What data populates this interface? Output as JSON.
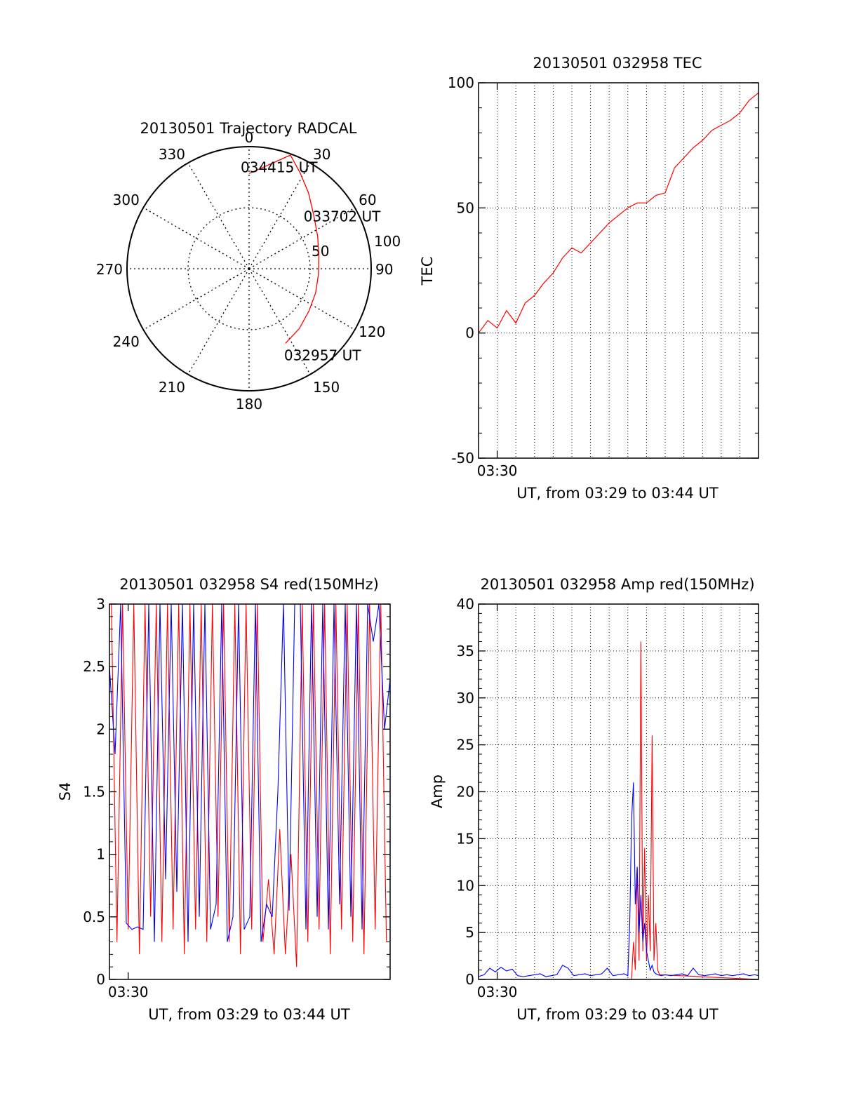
{
  "colors": {
    "primary": "#ff0000",
    "secondary": "#0000ff",
    "axis": "#000000",
    "grid": "#000000"
  },
  "chart_data": [
    {
      "type": "polar",
      "title": "20130501 Trajectory RADCAL",
      "angle_labels": [
        "0",
        "30",
        "60",
        "90",
        "120",
        "150",
        "180",
        "210",
        "240",
        "270",
        "300",
        "330"
      ],
      "radial_labels": [
        "50",
        "100"
      ],
      "rlim": [
        0,
        100
      ],
      "grid": true,
      "trajectory": {
        "start_label": "032957 UT",
        "mid_label": "033702 UT",
        "end_label": "034415 UT",
        "points": [
          {
            "az": 154,
            "r": 68
          },
          {
            "az": 140,
            "r": 64
          },
          {
            "az": 125,
            "r": 60
          },
          {
            "az": 110,
            "r": 58
          },
          {
            "az": 95,
            "r": 57
          },
          {
            "az": 80,
            "r": 58
          },
          {
            "az": 65,
            "r": 62
          },
          {
            "az": 50,
            "r": 69
          },
          {
            "az": 38,
            "r": 79
          },
          {
            "az": 28,
            "r": 89
          },
          {
            "az": 20,
            "r": 99
          },
          {
            "az": 0,
            "r": 78
          }
        ]
      }
    },
    {
      "type": "line",
      "title": "20130501 032958 TEC",
      "xlabel": "UT, from 03:29 to 03:44 UT",
      "ylabel": "TEC",
      "x_ticks": [
        "03:30"
      ],
      "y_ticks": [
        "-50",
        "0",
        "50",
        "100"
      ],
      "xlim": [
        0,
        15
      ],
      "ylim": [
        -50,
        100
      ],
      "grid": true,
      "series": [
        {
          "x": [
            0,
            0.5,
            1,
            1.5,
            2,
            2.5,
            3,
            3.5,
            4,
            4.5,
            5,
            5.5,
            6,
            6.5,
            7,
            7.5,
            8,
            8.5,
            9,
            9.5,
            10,
            10.5,
            11,
            11.5,
            12,
            12.5,
            13,
            13.5,
            14,
            14.5,
            15
          ],
          "y": [
            0,
            5,
            2,
            9,
            4,
            12,
            15,
            20,
            24,
            30,
            34,
            32,
            36,
            40,
            44,
            47,
            50,
            52,
            52,
            55,
            56,
            66,
            70,
            74,
            77,
            81,
            83,
            85,
            88,
            93,
            96
          ]
        }
      ]
    },
    {
      "type": "line",
      "title": "20130501 032958 S4 red(150MHz)",
      "xlabel": "UT, from 03:29 to 03:44 UT",
      "ylabel": "S4",
      "x_ticks": [
        "03:30"
      ],
      "y_ticks": [
        "0",
        "0.5",
        "1",
        "1.5",
        "2",
        "2.5",
        "3"
      ],
      "xlim": [
        0,
        15
      ],
      "ylim": [
        0,
        3
      ],
      "grid": false,
      "series": [
        {
          "color": "#ff0000",
          "x": [
            0.1,
            0.4,
            0.7,
            1.0,
            1.3,
            1.6,
            1.9,
            2.2,
            2.5,
            2.8,
            3.1,
            3.4,
            3.7,
            4.0,
            4.3,
            4.6,
            4.9,
            5.2,
            5.5,
            5.8,
            6.1,
            6.4,
            6.7,
            7.0,
            7.3,
            7.6,
            7.9,
            8.2,
            8.5,
            8.8,
            9.1,
            9.4,
            9.7,
            10.0,
            10.3,
            10.6,
            10.9,
            11.2,
            11.5,
            11.8,
            12.1,
            12.4,
            12.7,
            13.0,
            13.3,
            13.6,
            13.9,
            14.2,
            14.5,
            14.8
          ],
          "y": [
            3,
            0.3,
            3,
            0.4,
            3,
            0.2,
            3,
            0.5,
            3,
            0.3,
            3,
            0.4,
            3,
            0.2,
            3,
            0.4,
            3,
            0.3,
            3,
            0.5,
            3,
            0.3,
            3,
            0.2,
            3,
            0.4,
            3,
            0.3,
            0.8,
            0.2,
            1.2,
            0.2,
            1.0,
            0.1,
            3,
            0.3,
            3,
            0.4,
            3,
            0.2,
            3,
            0.4,
            3,
            0.3,
            3,
            0.2,
            3,
            0.4,
            3,
            0.3
          ]
        },
        {
          "color": "#0000ff",
          "x": [
            0.0,
            0.3,
            0.6,
            0.9,
            1.2,
            1.5,
            1.8,
            2.1,
            2.4,
            2.7,
            3.0,
            3.3,
            3.6,
            3.9,
            4.2,
            4.5,
            4.8,
            5.1,
            5.4,
            5.7,
            6.0,
            6.3,
            6.6,
            6.9,
            7.2,
            7.5,
            7.8,
            8.1,
            8.4,
            8.7,
            9.0,
            9.3,
            9.6,
            9.9,
            10.2,
            10.5,
            10.8,
            11.1,
            11.4,
            11.7,
            12.0,
            12.3,
            12.6,
            12.9,
            13.2,
            13.5,
            13.8,
            14.1,
            14.4,
            14.7,
            15.0
          ],
          "y": [
            2.5,
            1.8,
            3,
            0.45,
            0.4,
            0.42,
            0.4,
            3,
            0.3,
            3,
            0.8,
            3,
            0.7,
            3,
            0.3,
            3,
            0.5,
            3,
            0.4,
            0.6,
            3,
            0.3,
            0.5,
            3,
            0.4,
            0.5,
            3,
            0.3,
            0.6,
            0.5,
            1.5,
            3,
            0.55,
            3,
            3,
            0.4,
            3,
            0.5,
            3,
            0.4,
            3,
            0.6,
            3,
            0.5,
            3,
            0.4,
            3,
            2.7,
            3,
            2.0,
            2.4
          ]
        }
      ]
    },
    {
      "type": "line",
      "title": "20130501 032958 Amp red(150MHz)",
      "xlabel": "UT, from 03:29 to 03:44 UT",
      "ylabel": "Amp",
      "x_ticks": [
        "03:30"
      ],
      "y_ticks": [
        "0",
        "5",
        "10",
        "15",
        "20",
        "25",
        "30",
        "35",
        "40"
      ],
      "xlim": [
        0,
        15
      ],
      "ylim": [
        0,
        40
      ],
      "grid": true,
      "series": [
        {
          "color": "#ff0000",
          "x": [
            0,
            8.2,
            8.3,
            8.4,
            8.5,
            8.6,
            8.7,
            8.8,
            8.9,
            9.0,
            9.1,
            9.2,
            9.3,
            9.4,
            9.5,
            9.6,
            9.7,
            15
          ],
          "y": [
            0,
            0,
            4,
            1,
            12,
            2,
            36,
            3,
            14,
            2,
            9,
            3,
            26,
            2,
            6,
            1,
            0.5,
            0
          ]
        },
        {
          "color": "#0000ff",
          "x": [
            0,
            0.3,
            0.6,
            0.9,
            1.2,
            1.5,
            1.8,
            2.1,
            2.4,
            2.7,
            3.0,
            3.3,
            3.6,
            3.9,
            4.2,
            4.5,
            4.8,
            5.1,
            5.4,
            5.7,
            6.0,
            6.3,
            6.6,
            6.9,
            7.2,
            7.5,
            7.8,
            8.0,
            8.1,
            8.2,
            8.3,
            8.4,
            8.5,
            8.6,
            8.7,
            8.8,
            8.9,
            9.0,
            9.1,
            9.2,
            9.3,
            9.4,
            9.5,
            9.6,
            9.8,
            10.0,
            10.3,
            10.6,
            10.9,
            11.2,
            11.5,
            11.8,
            12.1,
            12.4,
            12.7,
            13.0,
            13.3,
            13.6,
            13.9,
            14.2,
            14.5,
            14.8,
            15.0
          ],
          "y": [
            0.3,
            0.5,
            1.2,
            0.8,
            1.3,
            0.9,
            1.1,
            0.4,
            0.3,
            0.4,
            0.5,
            0.6,
            0.3,
            0.4,
            0.5,
            1.5,
            1.2,
            0.4,
            0.5,
            0.6,
            0.4,
            0.5,
            0.6,
            1.2,
            0.4,
            0.5,
            0.6,
            0.4,
            6,
            17,
            21,
            8,
            12,
            5,
            9,
            4,
            6,
            3,
            2,
            1,
            1.5,
            0.8,
            0.6,
            0.5,
            0.4,
            0.5,
            0.4,
            0.5,
            0.6,
            0.4,
            1.2,
            0.5,
            0.4,
            0.5,
            0.6,
            0.4,
            0.5,
            0.4,
            0.5,
            0.6,
            0.4,
            0.5,
            0.4
          ]
        }
      ]
    }
  ]
}
